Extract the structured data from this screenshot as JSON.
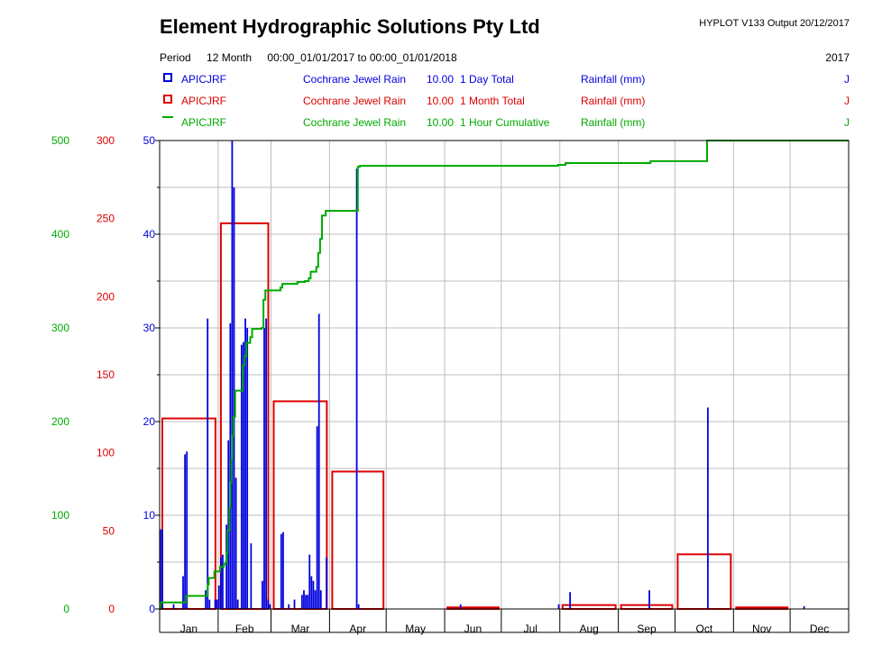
{
  "header": {
    "title": "Element Hydrographic Solutions Pty Ltd",
    "version": "HYPLOT V133  Output 20/12/2017",
    "period_label": "Period",
    "period_length": "12 Month",
    "period_range": "00:00_01/01/2017 to 00:00_01/01/2018",
    "year": "2017"
  },
  "legend": [
    {
      "code": "APICJRF",
      "site": "Cochrane Jewel Rain",
      "factor": "10.00",
      "desc": "1 Day Total",
      "units": "Rainfall (mm)",
      "flag": "J",
      "color": "#0000dd",
      "symbol": "box"
    },
    {
      "code": "APICJRF",
      "site": "Cochrane Jewel Rain",
      "factor": "10.00",
      "desc": "1 Month Total",
      "units": "Rainfall (mm)",
      "flag": "J",
      "color": "#dd0000",
      "symbol": "box"
    },
    {
      "code": "APICJRF",
      "site": "Cochrane Jewel Rain",
      "factor": "10.00",
      "desc": "1 Hour Cumulative",
      "units": "Rainfall (mm)",
      "flag": "J",
      "color": "#00aa00",
      "symbol": "line"
    }
  ],
  "chart_data": {
    "type": "bar",
    "x_range": [
      0,
      365
    ],
    "month_labels": [
      "Jan",
      "Feb",
      "Mar",
      "Apr",
      "May",
      "Jun",
      "Jul",
      "Aug",
      "Sep",
      "Oct",
      "Nov",
      "Dec"
    ],
    "month_starts": [
      0,
      31,
      59,
      90,
      120,
      151,
      181,
      212,
      243,
      273,
      304,
      334,
      365
    ],
    "axes": {
      "daily": {
        "range": [
          0,
          50
        ],
        "ticks": [
          0,
          10,
          20,
          30,
          40,
          50
        ],
        "color": "#0000dd"
      },
      "monthly": {
        "range": [
          0,
          300
        ],
        "ticks": [
          0,
          50,
          100,
          150,
          200,
          250,
          300
        ],
        "color": "#dd0000"
      },
      "cumulative": {
        "range": [
          0,
          500
        ],
        "ticks": [
          0,
          100,
          200,
          300,
          400,
          500
        ],
        "color": "#00aa00"
      }
    },
    "grid": true,
    "daily_total": [
      [
        0,
        8.5
      ],
      [
        1,
        8.5
      ],
      [
        7,
        0.5
      ],
      [
        12,
        3.5
      ],
      [
        13,
        16.5
      ],
      [
        14,
        16.8
      ],
      [
        24,
        2
      ],
      [
        25,
        31
      ],
      [
        26,
        1
      ],
      [
        29,
        1
      ],
      [
        30,
        1
      ],
      [
        31,
        2.5
      ],
      [
        32,
        5.5
      ],
      [
        33,
        5.8
      ],
      [
        35,
        9
      ],
      [
        36,
        18
      ],
      [
        37,
        30.5
      ],
      [
        38,
        50
      ],
      [
        39,
        45
      ],
      [
        40,
        14
      ],
      [
        41,
        1
      ],
      [
        43,
        28.2
      ],
      [
        44,
        28.5
      ],
      [
        45,
        31
      ],
      [
        46,
        30
      ],
      [
        48,
        7
      ],
      [
        54,
        3
      ],
      [
        55,
        30
      ],
      [
        56,
        31
      ],
      [
        57,
        1
      ],
      [
        58,
        0.5
      ],
      [
        64,
        8
      ],
      [
        65,
        8.2
      ],
      [
        68,
        0.5
      ],
      [
        71,
        1
      ],
      [
        75,
        1.5
      ],
      [
        76,
        2
      ],
      [
        77,
        1.5
      ],
      [
        78,
        1.5
      ],
      [
        79,
        5.8
      ],
      [
        80,
        3.5
      ],
      [
        81,
        3
      ],
      [
        82,
        2
      ],
      [
        83,
        19.5
      ],
      [
        84,
        31.5
      ],
      [
        85,
        2
      ],
      [
        88,
        5.5
      ],
      [
        104,
        47
      ],
      [
        105,
        0.5
      ],
      [
        159,
        0.5
      ],
      [
        211,
        0.5
      ],
      [
        217,
        1.8
      ],
      [
        259,
        2
      ],
      [
        290,
        21.5
      ],
      [
        341,
        0.3
      ]
    ],
    "monthly_total": [
      122,
      247,
      133,
      88,
      0,
      1,
      0,
      2.5,
      2.5,
      35,
      1,
      0
    ],
    "cumulative": [
      [
        0,
        0
      ],
      [
        0.5,
        7
      ],
      [
        13,
        7
      ],
      [
        14,
        14
      ],
      [
        25,
        14
      ],
      [
        25.5,
        26
      ],
      [
        26,
        33
      ],
      [
        29,
        40
      ],
      [
        32,
        45
      ],
      [
        34,
        48
      ],
      [
        35,
        50
      ],
      [
        35.5,
        60
      ],
      [
        36,
        84
      ],
      [
        37,
        108
      ],
      [
        37.5,
        135
      ],
      [
        38,
        160
      ],
      [
        38.5,
        185
      ],
      [
        39,
        205
      ],
      [
        40,
        233
      ],
      [
        43,
        233
      ],
      [
        44,
        260
      ],
      [
        45,
        270
      ],
      [
        46,
        284
      ],
      [
        48,
        290
      ],
      [
        49,
        299
      ],
      [
        54,
        300
      ],
      [
        55,
        330
      ],
      [
        56,
        340
      ],
      [
        60,
        340
      ],
      [
        64,
        343
      ],
      [
        65,
        347
      ],
      [
        70,
        347
      ],
      [
        73,
        349
      ],
      [
        77,
        350
      ],
      [
        79,
        353
      ],
      [
        80,
        360
      ],
      [
        83,
        365
      ],
      [
        84,
        380
      ],
      [
        85,
        395
      ],
      [
        86,
        420
      ],
      [
        88,
        425
      ],
      [
        104,
        425
      ],
      [
        105,
        472
      ],
      [
        106,
        473
      ],
      [
        211,
        474
      ],
      [
        215,
        476
      ],
      [
        259,
        476
      ],
      [
        260,
        478
      ],
      [
        289,
        478
      ],
      [
        290,
        500
      ],
      [
        365,
        500
      ]
    ]
  }
}
